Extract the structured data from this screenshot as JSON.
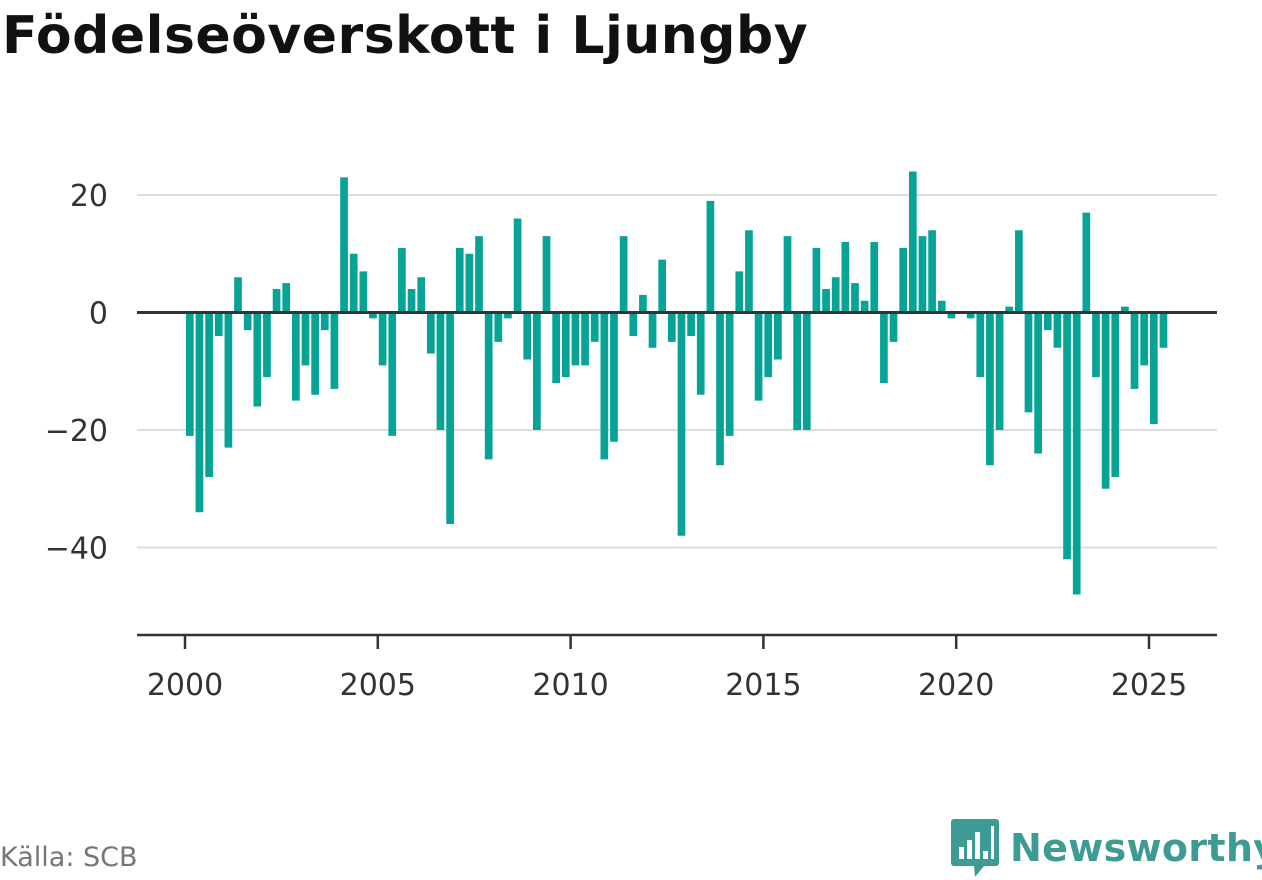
{
  "title": "Födelseöverskott i Ljungby",
  "source": "Källa: SCB",
  "brand": {
    "name": "Newsworthy",
    "icon": "bar-chart-speech-bubble-icon"
  },
  "colors": {
    "bar": "#07a396",
    "grid": "#dddddd",
    "axis": "#333333",
    "brand": "#3e9b94"
  },
  "chart_data": {
    "type": "bar",
    "title": "Födelseöverskott i Ljungby",
    "xlabel": "",
    "ylabel": "",
    "grid": true,
    "ylim": [
      -55,
      30
    ],
    "xlim": [
      1999.6,
      2026.9
    ],
    "y_ticks": [
      20,
      0,
      -20,
      -40
    ],
    "y_tick_labels": [
      "20",
      "0",
      "−20",
      "−40"
    ],
    "x_ticks": [
      2000,
      2005,
      2010,
      2015,
      2020,
      2025
    ],
    "x_tick_labels": [
      "2000",
      "2005",
      "2010",
      "2015",
      "2020",
      "2025"
    ],
    "series": [
      {
        "frequency": "quarterly",
        "start": "2000 Q1",
        "values": [
          -21,
          -34,
          -28,
          -4,
          -23,
          6,
          -3,
          -16,
          -11,
          4,
          5,
          -15,
          -9,
          -14,
          -3,
          -13,
          23,
          10,
          7,
          -1,
          -9,
          -21,
          11,
          4,
          6,
          -7,
          -20,
          -36,
          11,
          10,
          13,
          -25,
          -5,
          -1,
          16,
          -8,
          -20,
          13,
          -12,
          -11,
          -9,
          -9,
          -5,
          -25,
          -22,
          13,
          -4,
          3,
          -6,
          9,
          -5,
          -38,
          -4,
          -14,
          19,
          -26,
          -21,
          7,
          14,
          -15,
          -11,
          -8,
          13,
          -20,
          -20,
          11,
          4,
          6,
          12,
          5,
          2,
          12,
          -12,
          -5,
          11,
          24,
          13,
          14,
          2,
          -1,
          0,
          -1,
          -11,
          -26,
          -20,
          1,
          14,
          -17,
          -24,
          -3,
          -6,
          -42,
          -48,
          17,
          -11,
          -30,
          -28,
          1,
          -13,
          -9,
          -19,
          -6
        ]
      }
    ]
  }
}
